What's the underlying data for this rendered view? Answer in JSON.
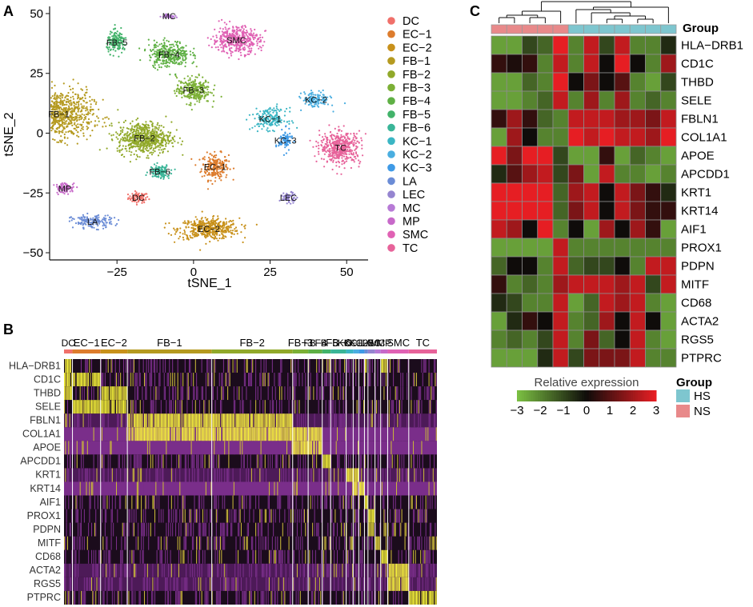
{
  "panels": {
    "a": {
      "label": "A",
      "xlabel": "tSNE_1",
      "ylabel": "tSNE_2",
      "x_ticks": [
        "−25",
        "0",
        "25",
        "50"
      ],
      "x_tick_values": [
        -25,
        0,
        25,
        50
      ],
      "y_ticks": [
        "50",
        "25",
        "0",
        "−25",
        "−50"
      ],
      "y_tick_values": [
        50,
        25,
        0,
        -25,
        -50
      ],
      "legend": [
        {
          "name": "DC",
          "color": "#f0706a"
        },
        {
          "name": "EC−1",
          "color": "#dd7c2d"
        },
        {
          "name": "EC−2",
          "color": "#c8911b"
        },
        {
          "name": "FB−1",
          "color": "#b59a20"
        },
        {
          "name": "FB−2",
          "color": "#91a92a"
        },
        {
          "name": "FB−3",
          "color": "#7cb036"
        },
        {
          "name": "FB−4",
          "color": "#5fb045"
        },
        {
          "name": "FB−5",
          "color": "#42b36a"
        },
        {
          "name": "FB−6",
          "color": "#3ab598"
        },
        {
          "name": "KC−1",
          "color": "#3bb6c4"
        },
        {
          "name": "KC−2",
          "color": "#4aaee0"
        },
        {
          "name": "KC−3",
          "color": "#3f9ae6"
        },
        {
          "name": "LA",
          "color": "#6b8cd6"
        },
        {
          "name": "LEC",
          "color": "#9585d0"
        },
        {
          "name": "MC",
          "color": "#b77ad6"
        },
        {
          "name": "MP",
          "color": "#c769c9"
        },
        {
          "name": "SMC",
          "color": "#e062b4"
        },
        {
          "name": "TC",
          "color": "#e7639a"
        }
      ],
      "clusters": [
        {
          "label": "MC",
          "x": -8,
          "y": 49
        },
        {
          "label": "SMC",
          "x": 14,
          "y": 39
        },
        {
          "label": "FB−5",
          "x": -25,
          "y": 38
        },
        {
          "label": "FB−4",
          "x": -8,
          "y": 33
        },
        {
          "label": "FB−3",
          "x": 0,
          "y": 18
        },
        {
          "label": "KC−2",
          "x": 40,
          "y": 14
        },
        {
          "label": "FB−1",
          "x": -44,
          "y": 8
        },
        {
          "label": "KC−1",
          "x": 25,
          "y": 6
        },
        {
          "label": "FB−2",
          "x": -16,
          "y": -2
        },
        {
          "label": "KC−3",
          "x": 30,
          "y": -3
        },
        {
          "label": "TC",
          "x": 48,
          "y": -6
        },
        {
          "label": "EC−1",
          "x": 7,
          "y": -14
        },
        {
          "label": "FB−6",
          "x": -11,
          "y": -16
        },
        {
          "label": "MP",
          "x": -42,
          "y": -23
        },
        {
          "label": "DC",
          "x": -18,
          "y": -27
        },
        {
          "label": "LEC",
          "x": 31,
          "y": -27
        },
        {
          "label": "LA",
          "x": -33,
          "y": -37
        },
        {
          "label": "EC−2",
          "x": 5,
          "y": -40
        }
      ]
    },
    "b": {
      "label": "B",
      "groups": [
        {
          "name": "DC",
          "color": "#f0706a"
        },
        {
          "name": "EC−1",
          "color": "#dd7c2d"
        },
        {
          "name": "EC−2",
          "color": "#c8911b"
        },
        {
          "name": "FB−1",
          "color": "#b59a20"
        },
        {
          "name": "FB−2",
          "color": "#91a92a"
        },
        {
          "name": "FB−3",
          "color": "#7cb036"
        },
        {
          "name": "FB−4",
          "color": "#5fb045"
        },
        {
          "name": "FB−5",
          "color": "#42b36a"
        },
        {
          "name": "FB−6",
          "color": "#3ab598"
        },
        {
          "name": "KC−1",
          "color": "#3bb6c4"
        },
        {
          "name": "KC−2",
          "color": "#4aaee0"
        },
        {
          "name": "KC−3",
          "color": "#3f9ae6"
        },
        {
          "name": "LA",
          "color": "#6b8cd6"
        },
        {
          "name": "LEC",
          "color": "#9585d0"
        },
        {
          "name": "MC",
          "color": "#b77ad6"
        },
        {
          "name": "MP",
          "color": "#c769c9"
        },
        {
          "name": "SMC",
          "color": "#e062b4"
        },
        {
          "name": "TC",
          "color": "#e7639a"
        }
      ],
      "genes": [
        "HLA−DRB1",
        "CD1C",
        "THBD",
        "SELE",
        "FBLN1",
        "COL1A1",
        "APOE",
        "APCDD1",
        "KRT1",
        "KRT14",
        "AIF1",
        "PROX1",
        "PDPN",
        "MITF",
        "CD68",
        "ACTA2",
        "RGS5",
        "PTPRC"
      ]
    },
    "c": {
      "label": "C",
      "group_title": "Group",
      "legend_title": "Relative expression",
      "scale_ticks": [
        "−3",
        "−2",
        "−1",
        "0",
        "1",
        "2",
        "3"
      ],
      "group_legend": [
        {
          "name": "HS",
          "color": "#7ec6cf"
        },
        {
          "name": "NS",
          "color": "#e8898a"
        }
      ],
      "genes": [
        "HLA−DRB1",
        "CD1C",
        "THBD",
        "SELE",
        "FBLN1",
        "COL1A1",
        "APOE",
        "APCDD1",
        "KRT1",
        "KRT14",
        "AIF1",
        "PROX1",
        "PDPN",
        "MITF",
        "CD68",
        "ACTA2",
        "RGS5",
        "PTPRC"
      ]
    }
  },
  "chart_data": [
    {
      "type": "scatter",
      "title": "",
      "xlabel": "tSNE_1",
      "ylabel": "tSNE_2",
      "xlim": [
        -47,
        57
      ],
      "ylim": [
        -53,
        53
      ],
      "series": [
        {
          "name": "DC",
          "center": [
            -18,
            -27
          ]
        },
        {
          "name": "EC−1",
          "center": [
            7,
            -14
          ]
        },
        {
          "name": "EC−2",
          "center": [
            5,
            -40
          ]
        },
        {
          "name": "FB−1",
          "center": [
            -44,
            8
          ]
        },
        {
          "name": "FB−2",
          "center": [
            -16,
            -2
          ]
        },
        {
          "name": "FB−3",
          "center": [
            0,
            18
          ]
        },
        {
          "name": "FB−4",
          "center": [
            -8,
            33
          ]
        },
        {
          "name": "FB−5",
          "center": [
            -25,
            38
          ]
        },
        {
          "name": "FB−6",
          "center": [
            -11,
            -16
          ]
        },
        {
          "name": "KC−1",
          "center": [
            25,
            6
          ]
        },
        {
          "name": "KC−2",
          "center": [
            40,
            14
          ]
        },
        {
          "name": "KC−3",
          "center": [
            30,
            -3
          ]
        },
        {
          "name": "LA",
          "center": [
            -33,
            -37
          ]
        },
        {
          "name": "LEC",
          "center": [
            31,
            -27
          ]
        },
        {
          "name": "MC",
          "center": [
            -8,
            49
          ]
        },
        {
          "name": "MP",
          "center": [
            -42,
            -23
          ]
        },
        {
          "name": "SMC",
          "center": [
            14,
            39
          ]
        },
        {
          "name": "TC",
          "center": [
            48,
            -6
          ]
        }
      ]
    },
    {
      "type": "heatmap",
      "title": "",
      "rows": [
        "HLA−DRB1",
        "CD1C",
        "THBD",
        "SELE",
        "FBLN1",
        "COL1A1",
        "APOE",
        "APCDD1",
        "KRT1",
        "KRT14",
        "AIF1",
        "PROX1",
        "PDPN",
        "MITF",
        "CD68",
        "ACTA2",
        "RGS5",
        "PTPRC"
      ],
      "columns": [
        "DC",
        "EC−1",
        "EC−2",
        "FB−1",
        "FB−2",
        "FB−3",
        "FB−4",
        "FB−5",
        "FB−6",
        "KC−1",
        "KC−2",
        "KC−3",
        "LA",
        "LEC",
        "MC",
        "MP",
        "SMC",
        "TC"
      ],
      "column_cell_counts": [
        12,
        40,
        38,
        120,
        115,
        22,
        20,
        12,
        22,
        10,
        8,
        8,
        5,
        10,
        8,
        10,
        30,
        40
      ],
      "high_expression": {
        "HLA−DRB1": [
          "DC",
          "LA",
          "MP"
        ],
        "CD1C": [
          "DC",
          "EC−1"
        ],
        "THBD": [
          "DC",
          "EC−2"
        ],
        "SELE": [
          "EC−1",
          "EC−2"
        ],
        "FBLN1": [
          "FB−1",
          "FB−2"
        ],
        "COL1A1": [
          "FB−1",
          "FB−2",
          "FB−3",
          "FB−4"
        ],
        "APOE": [
          "FB−3",
          "FB−4"
        ],
        "APCDD1": [
          "FB−5"
        ],
        "KRT1": [
          "KC−1",
          "KC−2"
        ],
        "KRT14": [
          "KC−2",
          "KC−3"
        ],
        "AIF1": [
          "LA"
        ],
        "PROX1": [
          "LEC"
        ],
        "PDPN": [
          "LEC"
        ],
        "MITF": [
          "MC"
        ],
        "CD68": [
          "MP"
        ],
        "ACTA2": [
          "SMC"
        ],
        "RGS5": [
          "SMC"
        ],
        "PTPRC": [
          "TC"
        ]
      }
    },
    {
      "type": "heatmap",
      "title": "",
      "legend_title": "Relative expression",
      "scale_range": [
        -3,
        3
      ],
      "rows": [
        "HLA−DRB1",
        "CD1C",
        "THBD",
        "SELE",
        "FBLN1",
        "COL1A1",
        "APOE",
        "APCDD1",
        "KRT1",
        "KRT14",
        "AIF1",
        "PROX1",
        "PDPN",
        "MITF",
        "CD68",
        "ACTA2",
        "RGS5",
        "PTPRC"
      ],
      "column_groups": [
        "NS",
        "NS",
        "NS",
        "NS",
        "NS",
        "HS",
        "HS",
        "HS",
        "HS",
        "HS",
        "HS",
        "HS"
      ],
      "values": [
        [
          -2.5,
          -2.5,
          -1.0,
          -1.5,
          3.0,
          -2.0,
          2.5,
          -1.0,
          2.5,
          -2.0,
          -2.0,
          -0.5
        ],
        [
          0.5,
          0.2,
          0.5,
          -2.0,
          2.5,
          -2.0,
          2.5,
          0.0,
          3.0,
          0.0,
          -2.0,
          2.0
        ],
        [
          -2.5,
          -2.5,
          -1.5,
          -2.0,
          3.0,
          0.0,
          1.5,
          0.0,
          1.0,
          -2.0,
          -2.5,
          -1.0
        ],
        [
          -2.5,
          -2.5,
          -2.0,
          -1.5,
          2.5,
          -2.0,
          2.0,
          -2.0,
          2.0,
          -2.0,
          -1.5,
          -2.0
        ],
        [
          0.5,
          2.0,
          0.5,
          -1.5,
          -2.0,
          2.5,
          2.5,
          2.5,
          2.0,
          2.0,
          1.5,
          2.5
        ],
        [
          -2.5,
          2.0,
          0.0,
          -2.0,
          -2.0,
          3.0,
          2.5,
          3.0,
          2.5,
          2.5,
          2.0,
          3.0
        ],
        [
          3.0,
          1.5,
          3.0,
          3.0,
          -1.0,
          -2.5,
          -2.5,
          0.5,
          -2.5,
          -1.5,
          -2.0,
          -2.5
        ],
        [
          -0.5,
          1.0,
          2.0,
          2.5,
          -1.0,
          1.5,
          -2.5,
          2.5,
          -2.0,
          -2.0,
          -2.5,
          -2.0
        ],
        [
          3.0,
          3.0,
          3.0,
          3.0,
          -1.5,
          2.0,
          2.5,
          0.0,
          2.5,
          1.5,
          0.5,
          -0.5
        ],
        [
          3.0,
          3.0,
          3.0,
          3.0,
          -1.5,
          1.5,
          2.5,
          0.0,
          2.5,
          1.5,
          0.5,
          0.5
        ],
        [
          2.5,
          2.0,
          0.0,
          3.0,
          -2.0,
          0.0,
          -2.5,
          2.0,
          0.0,
          2.0,
          0.5,
          -2.5
        ],
        [
          -2.5,
          -2.5,
          -2.5,
          -2.5,
          2.5,
          -2.0,
          -2.0,
          -2.0,
          -2.0,
          -2.0,
          -2.0,
          -2.0
        ],
        [
          -1.5,
          0.0,
          0.0,
          -2.0,
          2.5,
          -1.5,
          -1.0,
          -1.0,
          0.0,
          -2.0,
          2.5,
          2.5
        ],
        [
          0.5,
          -2.0,
          -1.5,
          -2.0,
          2.0,
          2.5,
          2.5,
          2.5,
          2.0,
          2.5,
          -1.0,
          2.5
        ],
        [
          -0.5,
          -1.0,
          -2.0,
          -2.0,
          2.5,
          -2.5,
          -1.5,
          2.5,
          2.0,
          2.5,
          -2.0,
          -2.5
        ],
        [
          -2.5,
          -0.5,
          0.5,
          0.0,
          2.5,
          -2.0,
          -1.5,
          2.0,
          0.0,
          2.5,
          0.0,
          -2.5
        ],
        [
          -2.0,
          -1.5,
          -2.0,
          -1.0,
          2.5,
          -2.0,
          1.5,
          -1.5,
          0.0,
          2.5,
          -2.0,
          -2.5
        ],
        [
          -2.5,
          -2.5,
          -2.5,
          -0.5,
          2.5,
          -1.0,
          1.5,
          1.5,
          1.5,
          2.5,
          -2.0,
          -2.0
        ]
      ]
    }
  ]
}
